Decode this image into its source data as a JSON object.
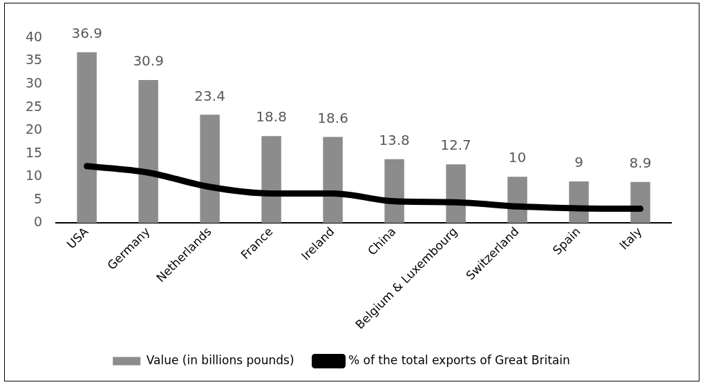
{
  "chart_data": {
    "type": "bar",
    "categories": [
      "USA",
      "Germany",
      "Netherlands",
      "France",
      "Ireland",
      "China",
      "Belgium & Luxembourg",
      "Switzerland",
      "Spain",
      "Italy"
    ],
    "series": [
      {
        "name": "Value (in billions pounds)",
        "color": "#8c8c8c",
        "values": [
          36.9,
          30.9,
          23.4,
          18.8,
          18.6,
          13.8,
          12.7,
          10,
          9,
          8.9
        ],
        "value_labels": [
          "36.9",
          "30.9",
          "23.4",
          "18.8",
          "18.6",
          "13.8",
          "12.7",
          "10",
          "9",
          "8.9"
        ]
      },
      {
        "name": "% of the total exports of Great Britain",
        "type": "line",
        "color": "#000000",
        "values": [
          12.3,
          10.9,
          7.8,
          6.4,
          6.4,
          4.7,
          4.5,
          3.6,
          3.2,
          3.1
        ]
      }
    ],
    "ylim": [
      0,
      40
    ],
    "yticks": [
      0,
      5,
      10,
      15,
      20,
      25,
      30,
      35,
      40
    ],
    "grid": false,
    "legend": "bottom",
    "marker": "none",
    "line_style": "solid"
  }
}
